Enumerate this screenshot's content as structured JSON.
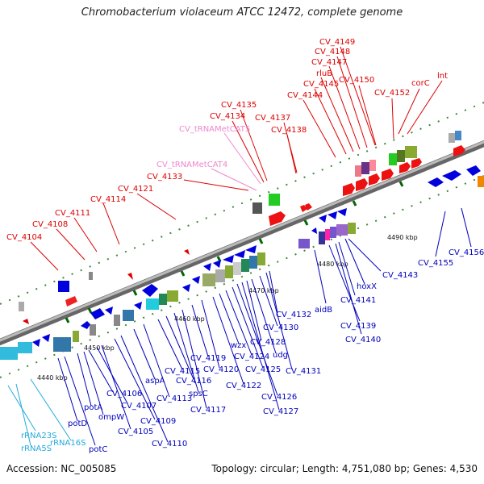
{
  "title": "Chromobacterium violaceum ATCC 12472, complete genome",
  "footer": {
    "accession": "Accession: NC_005085",
    "summary": "Topology: circular; Length: 4,751,080 bp; Genes: 4,530"
  },
  "colors": {
    "forward_label": "#dd0000",
    "reverse_label": "#0000bb",
    "trna_label": "#ee88cc",
    "rrna_label": "#22aadd",
    "backbone": "#888888",
    "tick": "#006600"
  },
  "axis": {
    "ticks": [
      "4440 kbp",
      "4450 kbp",
      "4460 kbp",
      "4470 kbp",
      "4480 kbp",
      "4490 kbp"
    ]
  },
  "top_labels": [
    {
      "text": "CV_4104",
      "color": "red"
    },
    {
      "text": "CV_4108",
      "color": "red"
    },
    {
      "text": "CV_4111",
      "color": "red"
    },
    {
      "text": "CV_4114",
      "color": "red"
    },
    {
      "text": "CV_4121",
      "color": "red"
    },
    {
      "text": "CV_4133",
      "color": "red"
    },
    {
      "text": "CV_tRNAMetCAT4",
      "color": "pink"
    },
    {
      "text": "CV_tRNAMetCAT5",
      "color": "pink"
    },
    {
      "text": "CV_4134",
      "color": "red"
    },
    {
      "text": "CV_4135",
      "color": "red"
    },
    {
      "text": "CV_4137",
      "color": "red"
    },
    {
      "text": "CV_4138",
      "color": "red"
    },
    {
      "text": "CV_4144",
      "color": "red"
    },
    {
      "text": "CV_4145",
      "color": "red"
    },
    {
      "text": "rluB",
      "color": "red"
    },
    {
      "text": "CV_4147",
      "color": "red"
    },
    {
      "text": "CV_4148",
      "color": "red"
    },
    {
      "text": "CV_4149",
      "color": "red"
    },
    {
      "text": "CV_4150",
      "color": "red"
    },
    {
      "text": "CV_4152",
      "color": "red"
    },
    {
      "text": "corC",
      "color": "red"
    },
    {
      "text": "lnt",
      "color": "red"
    }
  ],
  "bottom_labels": [
    {
      "text": "rRNA23S",
      "color": "cyan"
    },
    {
      "text": "rRNA5S",
      "color": "cyan"
    },
    {
      "text": "rRNA16S",
      "color": "cyan"
    },
    {
      "text": "potD",
      "color": "blue"
    },
    {
      "text": "potC",
      "color": "blue"
    },
    {
      "text": "potA",
      "color": "blue"
    },
    {
      "text": "ompW",
      "color": "blue"
    },
    {
      "text": "CV_4106",
      "color": "blue"
    },
    {
      "text": "CV_4107",
      "color": "blue"
    },
    {
      "text": "CV_4105",
      "color": "blue"
    },
    {
      "text": "CV_4109",
      "color": "blue"
    },
    {
      "text": "CV_4110",
      "color": "blue"
    },
    {
      "text": "aspA",
      "color": "blue"
    },
    {
      "text": "CV_4113",
      "color": "blue"
    },
    {
      "text": "CV_4115",
      "color": "blue"
    },
    {
      "text": "CV_4116",
      "color": "blue"
    },
    {
      "text": "spsC",
      "color": "blue"
    },
    {
      "text": "CV_4117",
      "color": "blue"
    },
    {
      "text": "CV_4119",
      "color": "blue"
    },
    {
      "text": "CV_4120",
      "color": "blue"
    },
    {
      "text": "CV_4122",
      "color": "blue"
    },
    {
      "text": "wzx",
      "color": "blue"
    },
    {
      "text": "CV_4124",
      "color": "blue"
    },
    {
      "text": "CV_4125",
      "color": "blue"
    },
    {
      "text": "CV_4126",
      "color": "blue"
    },
    {
      "text": "CV_4127",
      "color": "blue"
    },
    {
      "text": "CV_4128",
      "color": "blue"
    },
    {
      "text": "udg",
      "color": "blue"
    },
    {
      "text": "CV_4130",
      "color": "blue"
    },
    {
      "text": "CV_4131",
      "color": "blue"
    },
    {
      "text": "CV_4132",
      "color": "blue"
    },
    {
      "text": "aidB",
      "color": "blue"
    },
    {
      "text": "CV_4139",
      "color": "blue"
    },
    {
      "text": "CV_4140",
      "color": "blue"
    },
    {
      "text": "CV_4141",
      "color": "blue"
    },
    {
      "text": "hoxX",
      "color": "blue"
    },
    {
      "text": "CV_4143",
      "color": "blue"
    },
    {
      "text": "CV_4155",
      "color": "blue"
    },
    {
      "text": "CV_4156",
      "color": "blue"
    }
  ]
}
